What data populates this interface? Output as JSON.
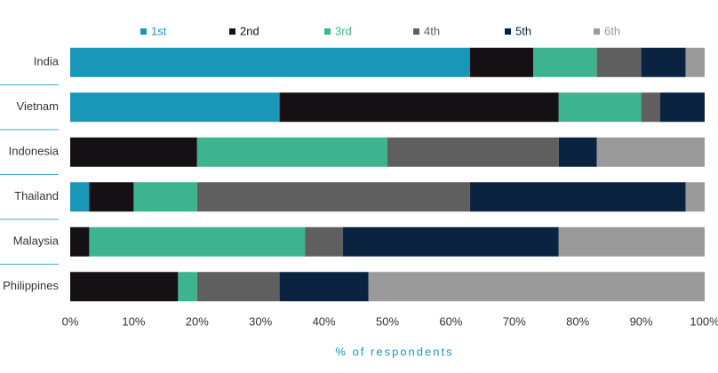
{
  "chart_data": {
    "type": "stacked-bar-horizontal",
    "categories": [
      "India",
      "Vietnam",
      "Indonesia",
      "Thailand",
      "Malaysia",
      "Philippines"
    ],
    "series": [
      {
        "name": "1st",
        "color": "#1a96b8",
        "values": [
          63,
          33,
          0,
          3,
          0,
          0
        ]
      },
      {
        "name": "2nd",
        "color": "#141014",
        "values": [
          10,
          44,
          20,
          7,
          3,
          17
        ]
      },
      {
        "name": "3rd",
        "color": "#3bb48f",
        "values": [
          10,
          13,
          30,
          10,
          34,
          3
        ]
      },
      {
        "name": "4th",
        "color": "#5f5f5f",
        "values": [
          7,
          3,
          27,
          43,
          6,
          13
        ]
      },
      {
        "name": "5th",
        "color": "#0a2340",
        "values": [
          7,
          7,
          6,
          34,
          34,
          14
        ]
      },
      {
        "name": "6th",
        "color": "#9a9a9a",
        "values": [
          3,
          0,
          17,
          3,
          23,
          53
        ]
      }
    ],
    "xlim": [
      0,
      100
    ],
    "xticks": [
      {
        "value": 0,
        "label": "0%"
      },
      {
        "value": 10,
        "label": "10%"
      },
      {
        "value": 20,
        "label": "20%"
      },
      {
        "value": 30,
        "label": "30%"
      },
      {
        "value": 40,
        "label": "40%"
      },
      {
        "value": 50,
        "label": "50%"
      },
      {
        "value": 60,
        "label": "60%"
      },
      {
        "value": 70,
        "label": "70%"
      },
      {
        "value": 80,
        "label": "80%"
      },
      {
        "value": 90,
        "label": "90%"
      },
      {
        "value": 100,
        "label": "100%"
      }
    ],
    "x_label": "% of respondents"
  }
}
